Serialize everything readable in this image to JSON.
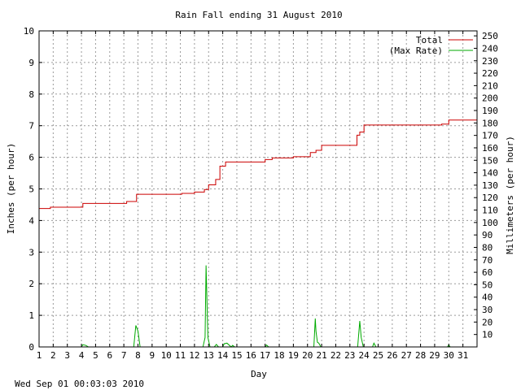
{
  "chart_data": {
    "type": "line",
    "title": "Rain Fall ending 31 August 2010",
    "xlabel": "Day",
    "ylabel": "Inches (per hour)",
    "y2label": "Millimeters (per hour)",
    "footer": "Wed Sep 01 00:03:03 2010",
    "xlim": [
      1,
      32
    ],
    "ylim": [
      0,
      10
    ],
    "y2lim": [
      0,
      254
    ],
    "x_ticks": [
      1,
      2,
      3,
      4,
      5,
      6,
      7,
      8,
      9,
      10,
      11,
      12,
      13,
      14,
      15,
      16,
      17,
      18,
      19,
      20,
      21,
      22,
      23,
      24,
      25,
      26,
      27,
      28,
      29,
      30,
      31
    ],
    "y_ticks": [
      0,
      1,
      2,
      3,
      4,
      5,
      6,
      7,
      8,
      9,
      10
    ],
    "y2_ticks": [
      10,
      20,
      30,
      40,
      50,
      60,
      70,
      80,
      90,
      100,
      110,
      120,
      130,
      140,
      150,
      160,
      170,
      180,
      190,
      200,
      210,
      220,
      230,
      240,
      250
    ],
    "grid": true,
    "legend_position": "top-right",
    "series": [
      {
        "name": "Total",
        "color": "#cc0000",
        "style": "step",
        "x": [
          1,
          1.8,
          4.1,
          7.2,
          7.9,
          11.1,
          12.0,
          12.7,
          13.0,
          13.5,
          13.8,
          14.2,
          17.0,
          17.5,
          19.0,
          20.2,
          20.6,
          21.0,
          23.5,
          23.7,
          24.0,
          29.5,
          30.0,
          32.0
        ],
        "y": [
          4.38,
          4.42,
          4.54,
          4.6,
          4.83,
          4.86,
          4.9,
          4.98,
          5.13,
          5.3,
          5.72,
          5.85,
          5.93,
          5.98,
          6.02,
          6.15,
          6.22,
          6.38,
          6.7,
          6.8,
          7.02,
          7.05,
          7.18,
          7.18
        ]
      },
      {
        "name": "(Max Rate)",
        "color": "#00aa00",
        "style": "line",
        "x": [
          1,
          4.0,
          4.1,
          4.3,
          4.5,
          7.7,
          7.85,
          8.0,
          8.15,
          12.6,
          12.75,
          12.82,
          12.88,
          12.95,
          13.1,
          13.4,
          13.55,
          13.7,
          14.0,
          14.1,
          14.3,
          14.6,
          14.7,
          14.85,
          17.0,
          17.1,
          17.25,
          20.45,
          20.55,
          20.6,
          20.7,
          20.8,
          20.95,
          23.55,
          23.7,
          23.8,
          23.95,
          24.6,
          24.7,
          24.85,
          29.9,
          30.0,
          30.1,
          32.0
        ],
        "y": [
          0,
          0,
          0.07,
          0.05,
          0,
          0,
          0.68,
          0.5,
          0,
          0,
          0.3,
          2.58,
          1.5,
          0.3,
          0,
          0,
          0.08,
          0,
          0,
          0.1,
          0.12,
          0,
          0.05,
          0,
          0,
          0.06,
          0,
          0,
          0.9,
          0.5,
          0.15,
          0.12,
          0,
          0,
          0.82,
          0.3,
          0,
          0,
          0.12,
          0,
          0,
          0.06,
          0,
          0
        ]
      }
    ]
  }
}
